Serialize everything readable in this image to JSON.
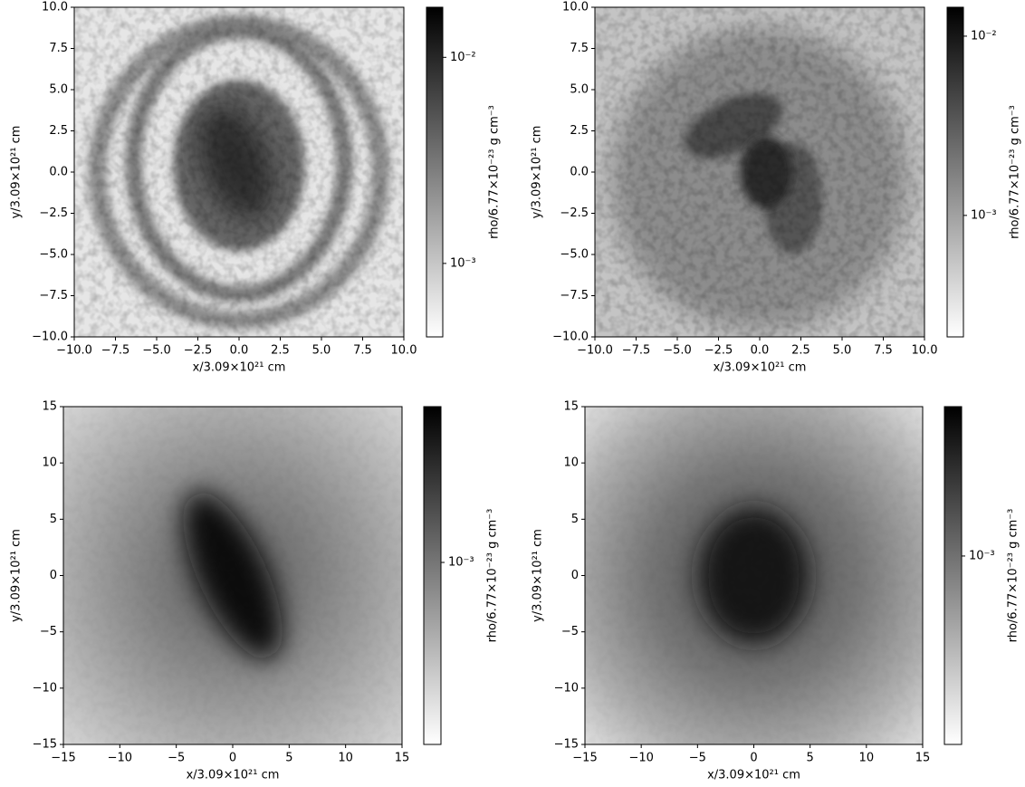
{
  "chart_data": [
    {
      "type": "heatmap",
      "x_label": "x/3.09×10²¹ cm",
      "y_label": "y/3.09×10²¹ cm",
      "xlim": [
        -10,
        10
      ],
      "ylim": [
        -10,
        10
      ],
      "xticks": [
        {
          "value": -10,
          "label": "−10.0"
        },
        {
          "value": -7.5,
          "label": "−7.5"
        },
        {
          "value": -5,
          "label": "−5.0"
        },
        {
          "value": -2.5,
          "label": "−2.5"
        },
        {
          "value": 0,
          "label": "0.0"
        },
        2.5,
        {
          "value": 5,
          "label": "5.0"
        },
        7.5,
        {
          "value": 10,
          "label": "10.0"
        }
      ],
      "yticks": [
        {
          "value": -10,
          "label": "−10.0"
        },
        {
          "value": -7.5,
          "label": "−7.5"
        },
        {
          "value": -5,
          "label": "−5.0"
        },
        {
          "value": -2.5,
          "label": "−2.5"
        },
        {
          "value": 0,
          "label": "0.0"
        },
        2.5,
        {
          "value": 5,
          "label": "5.0"
        },
        7.5,
        {
          "value": 10,
          "label": "10.0"
        }
      ],
      "colorbar": {
        "label": "rho/6.77×10⁻²³ g cm⁻³",
        "log": true,
        "lim": [
          0.00044,
          0.0175
        ],
        "ticks": [
          {
            "value": 0.001,
            "label": "10⁻³"
          },
          {
            "value": 0.01,
            "label": "10⁻²"
          }
        ]
      }
    },
    {
      "type": "heatmap",
      "x_label": "x/3.09×10²¹ cm",
      "y_label": "y/3.09×10²¹ cm",
      "xlim": [
        -10,
        10
      ],
      "ylim": [
        -10,
        10
      ],
      "xticks": [
        {
          "value": -10,
          "label": "−10.0"
        },
        {
          "value": -7.5,
          "label": "−7.5"
        },
        {
          "value": -5,
          "label": "−5.0"
        },
        {
          "value": -2.5,
          "label": "−2.5"
        },
        {
          "value": 0,
          "label": "0.0"
        },
        2.5,
        {
          "value": 5,
          "label": "5.0"
        },
        7.5,
        {
          "value": 10,
          "label": "10.0"
        }
      ],
      "yticks": [
        {
          "value": -10,
          "label": "−10.0"
        },
        {
          "value": -7.5,
          "label": "−7.5"
        },
        {
          "value": -5,
          "label": "−5.0"
        },
        {
          "value": -2.5,
          "label": "−2.5"
        },
        {
          "value": 0,
          "label": "0.0"
        },
        2.5,
        {
          "value": 5,
          "label": "5.0"
        },
        7.5,
        {
          "value": 10,
          "label": "10.0"
        }
      ],
      "colorbar": {
        "label": "rho/6.77×10⁻²³ g cm⁻³",
        "log": true,
        "lim": [
          0.00021,
          0.0145
        ],
        "ticks": [
          {
            "value": 0.001,
            "label": "10⁻³"
          },
          {
            "value": 0.01,
            "label": "10⁻²"
          }
        ]
      }
    },
    {
      "type": "heatmap",
      "x_label": "x/3.09×10²¹ cm",
      "y_label": "y/3.09×10²¹ cm",
      "xlim": [
        -15,
        15
      ],
      "ylim": [
        -15,
        15
      ],
      "xticks": [
        {
          "value": -15,
          "label": "−15"
        },
        {
          "value": -10,
          "label": "−10"
        },
        {
          "value": -5,
          "label": "−5"
        },
        0,
        5,
        10,
        15
      ],
      "yticks": [
        {
          "value": -15,
          "label": "−15"
        },
        {
          "value": -10,
          "label": "−10"
        },
        {
          "value": -5,
          "label": "−5"
        },
        0,
        5,
        10,
        15
      ],
      "colorbar": {
        "label": "rho/6.77×10⁻²³ g cm⁻³",
        "log": true,
        "lim": [
          0.00016,
          0.0048
        ],
        "ticks": [
          {
            "value": 0.001,
            "label": "10⁻³"
          }
        ]
      }
    },
    {
      "type": "heatmap",
      "x_label": "x/3.09×10²¹ cm",
      "y_label": "y/3.09×10²¹ cm",
      "xlim": [
        -15,
        15
      ],
      "ylim": [
        -15,
        15
      ],
      "xticks": [
        {
          "value": -15,
          "label": "−15"
        },
        {
          "value": -10,
          "label": "−10"
        },
        {
          "value": -5,
          "label": "−5"
        },
        0,
        5,
        10,
        15
      ],
      "yticks": [
        {
          "value": -15,
          "label": "−15"
        },
        {
          "value": -10,
          "label": "−10"
        },
        {
          "value": -5,
          "label": "−5"
        },
        0,
        5,
        10,
        15
      ],
      "colorbar": {
        "label": "rho/6.77×10⁻²³ g cm⁻³",
        "log": true,
        "lim": [
          0.00015,
          0.0045
        ],
        "ticks": [
          {
            "value": 0.001,
            "label": "10⁻³"
          }
        ]
      }
    }
  ]
}
